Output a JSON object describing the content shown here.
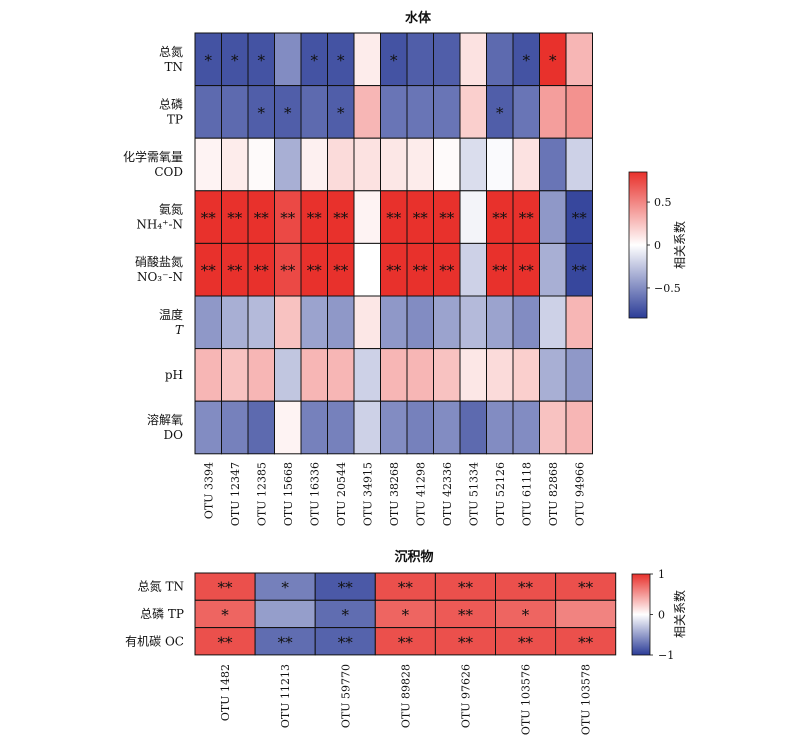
{
  "colors": {
    "low": "#2b3c97",
    "mid": "#ffffff",
    "high": "#e8312c",
    "border": "#111111"
  },
  "chart_data": [
    {
      "type": "heatmap",
      "title": "水体",
      "columns": [
        "OTU 3394",
        "OTU 12347",
        "OTU 12385",
        "OTU 15668",
        "OTU 16336",
        "OTU 20544",
        "OTU 34915",
        "OTU 38268",
        "OTU 41298",
        "OTU 42336",
        "OTU 51334",
        "OTU 52126",
        "OTU 61118",
        "OTU 82868",
        "OTU 94966"
      ],
      "rows": [
        {
          "label": [
            "总氮",
            "TN"
          ],
          "italic": [
            false,
            false
          ]
        },
        {
          "label": [
            "总磷",
            "TP"
          ],
          "italic": [
            false,
            false
          ]
        },
        {
          "label": [
            "化学需氧量",
            "COD"
          ],
          "italic": [
            false,
            false
          ]
        },
        {
          "label": [
            "氨氮",
            "NH₄⁺-N"
          ],
          "italic": [
            false,
            false
          ]
        },
        {
          "label": [
            "硝酸盐氮",
            "NO₃⁻-N"
          ],
          "italic": [
            false,
            false
          ]
        },
        {
          "label": [
            "温度",
            "T"
          ],
          "italic": [
            false,
            true
          ]
        },
        {
          "label": [
            "pH"
          ],
          "italic": [
            false
          ]
        },
        {
          "label": [
            "溶解氧",
            "DO"
          ],
          "italic": [
            false,
            false
          ]
        }
      ],
      "values": [
        [
          -0.75,
          -0.75,
          -0.75,
          -0.5,
          -0.75,
          -0.75,
          0.08,
          -0.75,
          -0.7,
          -0.7,
          0.12,
          -0.65,
          -0.75,
          0.85,
          0.3
        ],
        [
          -0.65,
          -0.65,
          -0.7,
          -0.7,
          -0.65,
          -0.7,
          0.3,
          -0.6,
          -0.6,
          -0.6,
          0.2,
          -0.7,
          -0.6,
          0.4,
          0.45
        ],
        [
          0.05,
          0.08,
          0.02,
          -0.35,
          0.06,
          0.15,
          0.12,
          0.1,
          0.08,
          0.02,
          -0.15,
          -0.02,
          0.12,
          -0.6,
          -0.2
        ],
        [
          0.85,
          0.85,
          0.85,
          0.75,
          0.85,
          0.85,
          0.05,
          0.85,
          0.85,
          0.85,
          -0.05,
          0.85,
          0.85,
          -0.45,
          -0.8
        ],
        [
          0.85,
          0.85,
          0.85,
          0.75,
          0.85,
          0.85,
          0.0,
          0.85,
          0.85,
          0.85,
          -0.2,
          0.85,
          0.85,
          -0.35,
          -0.8
        ],
        [
          -0.45,
          -0.35,
          -0.3,
          0.25,
          -0.4,
          -0.45,
          0.1,
          -0.45,
          -0.5,
          -0.4,
          -0.3,
          -0.4,
          -0.5,
          -0.2,
          0.3
        ],
        [
          0.3,
          0.25,
          0.3,
          -0.25,
          0.3,
          0.3,
          -0.2,
          0.3,
          0.3,
          0.25,
          0.1,
          0.15,
          0.2,
          -0.35,
          -0.45
        ],
        [
          -0.5,
          -0.55,
          -0.65,
          0.05,
          -0.55,
          -0.55,
          -0.2,
          -0.5,
          -0.55,
          -0.5,
          -0.65,
          -0.5,
          -0.5,
          0.25,
          0.3
        ]
      ],
      "significance": [
        [
          "*",
          "*",
          "*",
          "",
          "*",
          "*",
          "",
          "*",
          "",
          "",
          "",
          "",
          "*",
          "*",
          ""
        ],
        [
          "",
          "",
          "*",
          "*",
          "",
          "*",
          "",
          "",
          "",
          "",
          "",
          "*",
          "",
          "",
          ""
        ],
        [
          "",
          "",
          "",
          "",
          "",
          "",
          "",
          "",
          "",
          "",
          "",
          "",
          "",
          "",
          ""
        ],
        [
          "**",
          "**",
          "**",
          "**",
          "**",
          "**",
          "",
          "**",
          "**",
          "**",
          "",
          "**",
          "**",
          "",
          "**"
        ],
        [
          "**",
          "**",
          "**",
          "**",
          "**",
          "**",
          "",
          "**",
          "**",
          "**",
          "",
          "**",
          "**",
          "",
          "**"
        ],
        [
          "",
          "",
          "",
          "",
          "",
          "",
          "",
          "",
          "",
          "",
          "",
          "",
          "",
          "",
          ""
        ],
        [
          "",
          "",
          "",
          "",
          "",
          "",
          "",
          "",
          "",
          "",
          "",
          "",
          "",
          "",
          ""
        ],
        [
          "",
          "",
          "",
          "",
          "",
          "",
          "",
          "",
          "",
          "",
          "",
          "",
          "",
          "",
          ""
        ]
      ],
      "vlim": [
        -0.85,
        0.85
      ],
      "colorbar": {
        "label": "相关系数",
        "ticks": [
          "0.5",
          "0",
          "−0.5"
        ],
        "tick_values": [
          0.5,
          0,
          -0.5
        ]
      }
    },
    {
      "type": "heatmap",
      "title": "沉积物",
      "columns": [
        "OTU 1482",
        "OTU 11213",
        "OTU 59770",
        "OTU 89828",
        "OTU 97626",
        "OTU 103576",
        "OTU 103578"
      ],
      "rows": [
        {
          "label": [
            "总氮 TN"
          ],
          "italic": [
            false
          ]
        },
        {
          "label": [
            "总磷 TP"
          ],
          "italic": [
            false
          ]
        },
        {
          "label": [
            "有机碳 OC"
          ],
          "italic": [
            false
          ]
        }
      ],
      "values": [
        [
          0.85,
          -0.65,
          -0.85,
          0.85,
          0.85,
          0.85,
          0.85
        ],
        [
          0.75,
          -0.5,
          -0.75,
          0.75,
          0.8,
          0.75,
          0.6
        ],
        [
          0.85,
          -0.75,
          -0.8,
          0.85,
          0.85,
          0.85,
          0.85
        ]
      ],
      "significance": [
        [
          "**",
          "*",
          "**",
          "**",
          "**",
          "**",
          "**"
        ],
        [
          "*",
          "",
          "*",
          "*",
          "**",
          "*",
          ""
        ],
        [
          "**",
          "**",
          "**",
          "**",
          "**",
          "**",
          "**"
        ]
      ],
      "vlim": [
        -1,
        1
      ],
      "colorbar": {
        "label": "相关系数",
        "ticks": [
          "1",
          "0",
          "−1"
        ],
        "tick_values": [
          1,
          0,
          -1
        ]
      }
    }
  ]
}
